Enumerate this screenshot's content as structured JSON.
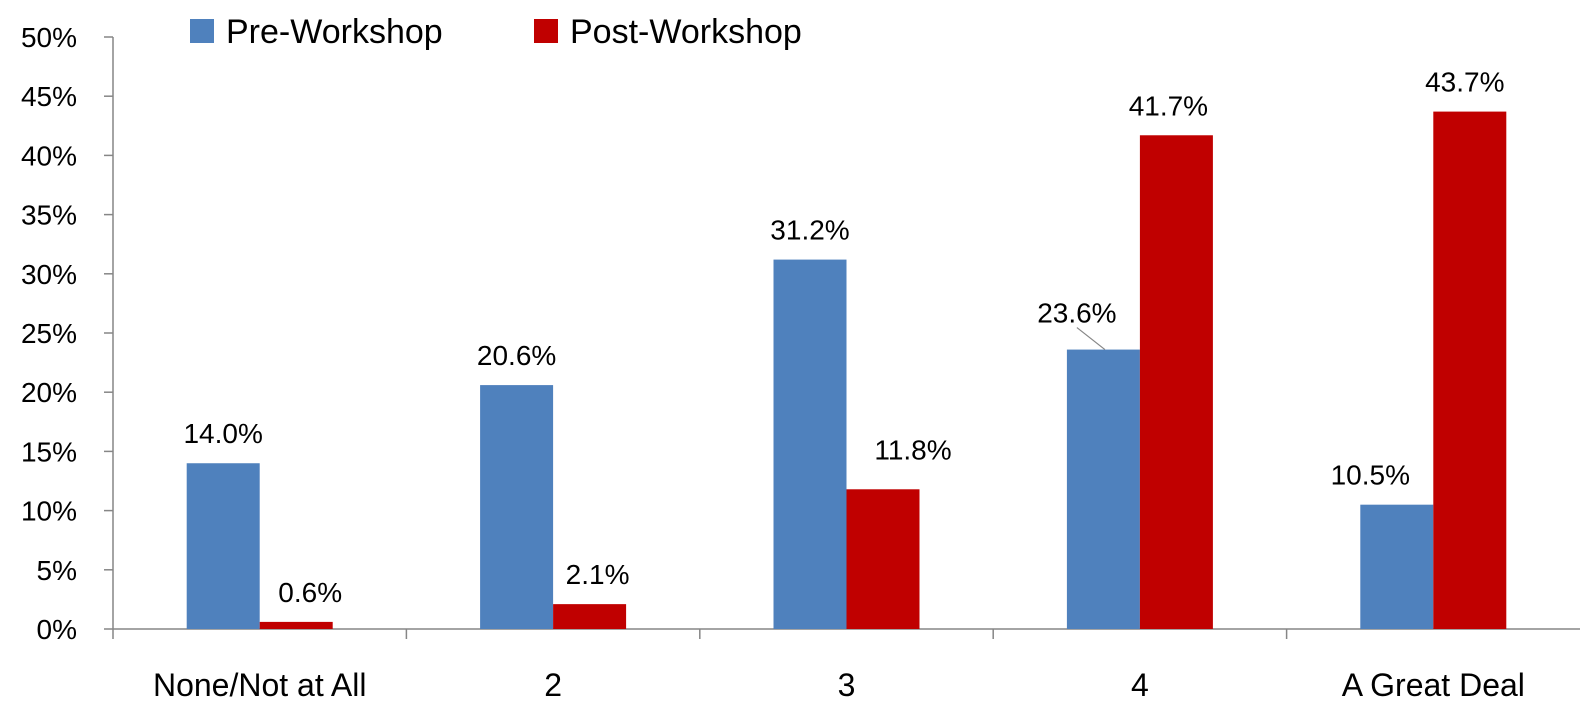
{
  "chart_data": {
    "type": "bar",
    "categories": [
      "None/Not at All",
      "2",
      "3",
      "4",
      "A Great Deal"
    ],
    "series": [
      {
        "name": "Pre-Workshop",
        "color": "#4F81BD",
        "values": [
          14.0,
          20.6,
          31.2,
          23.6,
          10.5
        ],
        "labels": [
          "14.0%",
          "20.6%",
          "31.2%",
          "23.6%",
          "10.5%"
        ]
      },
      {
        "name": "Post-Workshop",
        "color": "#C00000",
        "values": [
          0.6,
          2.1,
          11.8,
          41.7,
          43.7
        ],
        "labels": [
          "0.6%",
          "2.1%",
          "11.8%",
          "41.7%",
          "43.7%"
        ]
      }
    ],
    "y_ticks": [
      "0%",
      "5%",
      "10%",
      "15%",
      "20%",
      "25%",
      "30%",
      "35%",
      "40%",
      "45%",
      "50%"
    ],
    "ylim": [
      0,
      50
    ],
    "grid": false,
    "legend_position": "top-left",
    "title": "",
    "xlabel": "",
    "ylabel": ""
  }
}
